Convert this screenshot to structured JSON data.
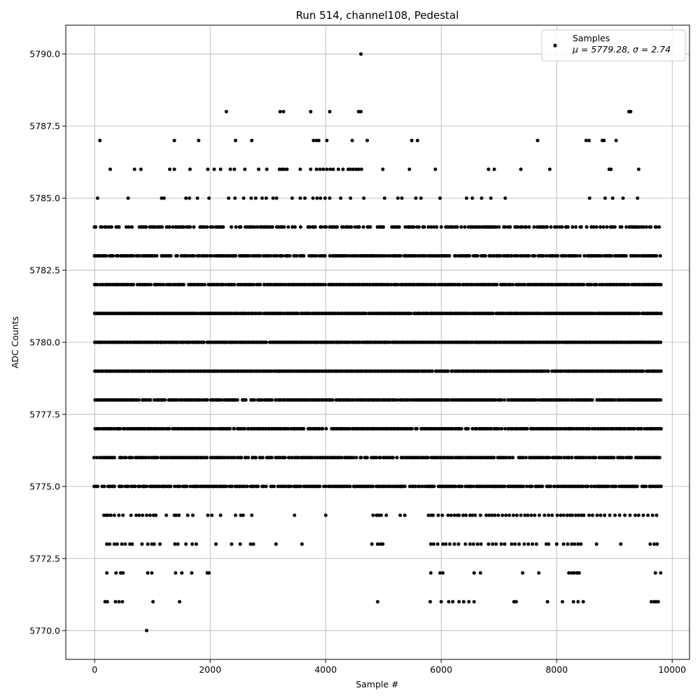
{
  "chart_data": {
    "type": "scatter",
    "title": "Run 514, channel108, Pedestal",
    "xlabel": "Sample #",
    "ylabel": "ADC Counts",
    "xlim": [
      -500,
      10300
    ],
    "ylim": [
      5769.0,
      5791.0
    ],
    "x_ticks": [
      0,
      2000,
      4000,
      6000,
      8000,
      10000
    ],
    "x_tick_labels": [
      "0",
      "2000",
      "4000",
      "6000",
      "8000",
      "10000"
    ],
    "y_ticks": [
      5770.0,
      5772.5,
      5775.0,
      5777.5,
      5780.0,
      5782.5,
      5785.0,
      5787.5,
      5790.0
    ],
    "y_tick_labels": [
      "5770.0",
      "5772.5",
      "5775.0",
      "5777.5",
      "5780.0",
      "5782.5",
      "5785.0",
      "5787.5",
      "5790.0"
    ],
    "grid": true,
    "marker_color": "#000000",
    "legend": {
      "placement": "top-right",
      "series_name": "Samples",
      "stats_text": "μ = 5779.28, σ = 2.74"
    },
    "n_samples": 9800,
    "levels": [
      {
        "y": 5790,
        "x": [
          4610
        ]
      },
      {
        "y": 5788,
        "x": [
          2280,
          3210,
          3270,
          3740,
          4070,
          4570,
          4610,
          9250,
          9280
        ]
      },
      {
        "y": 5787,
        "x": [
          90,
          1380,
          1800,
          2440,
          2720,
          3790,
          3840,
          3880,
          4020,
          4460,
          4720,
          5490,
          5590,
          7670,
          8510,
          8560,
          8790,
          8820,
          9030
        ]
      },
      {
        "y": 5786,
        "x": [
          270,
          690,
          800,
          1300,
          1380,
          1650,
          1960,
          2070,
          2180,
          2350,
          2420,
          2600,
          2840,
          2980,
          3200,
          3240,
          3280,
          3330,
          3560,
          3740,
          3840,
          3900,
          3960,
          4020,
          4080,
          4130,
          4220,
          4300,
          4390,
          4430,
          4480,
          4530,
          4570,
          4620,
          4990,
          5450,
          5900,
          6820,
          6920,
          7380,
          7880,
          8910,
          8940,
          9420
        ]
      },
      {
        "y": 5785,
        "x": [
          50,
          580,
          1160,
          1200,
          1580,
          1640,
          1780,
          1980,
          2320,
          2430,
          2580,
          2710,
          2790,
          2900,
          2970,
          3090,
          3150,
          3420,
          3560,
          3640,
          3780,
          3850,
          3910,
          3990,
          4070,
          4260,
          4430,
          4660,
          5020,
          5250,
          5320,
          5560,
          5650,
          5980,
          6440,
          6540,
          6700,
          6860,
          7110,
          8570,
          8840,
          8970,
          9150,
          9400
        ]
      },
      {
        "y": 5784,
        "range": [
          0,
          9810
        ],
        "density": 0.62,
        "seed": 11
      },
      {
        "y": 5783,
        "range": [
          0,
          9810
        ],
        "density": 0.78,
        "seed": 12
      },
      {
        "y": 5782,
        "range": [
          0,
          9810
        ],
        "density": 0.92,
        "seed": 13
      },
      {
        "y": 5781,
        "range": [
          0,
          9810
        ],
        "density": 0.97,
        "seed": 14
      },
      {
        "y": 5780,
        "range": [
          0,
          9810
        ],
        "density": 0.98,
        "seed": 15
      },
      {
        "y": 5779,
        "range": [
          0,
          9810
        ],
        "density": 0.98,
        "seed": 16
      },
      {
        "y": 5778,
        "range": [
          0,
          9810
        ],
        "density": 0.94,
        "seed": 17
      },
      {
        "y": 5777,
        "range": [
          0,
          9810
        ],
        "density": 0.93,
        "seed": 18
      },
      {
        "y": 5776,
        "range": [
          0,
          9810
        ],
        "density": 0.8,
        "seed": 19
      },
      {
        "y": 5775,
        "range": [
          0,
          9810
        ],
        "density": 0.82,
        "seed": 20
      },
      {
        "y": 5774,
        "x": [
          160,
          200,
          230,
          280,
          340,
          420,
          490,
          630,
          720,
          770,
          830,
          900,
          960,
          1020,
          1060,
          1240,
          1380,
          1410,
          1460,
          1610,
          1700,
          1960,
          2030,
          2180,
          2440,
          2530,
          2570,
          2720,
          3460,
          4000,
          4820,
          4880,
          4920,
          4960,
          5050,
          5290,
          5370,
          5780,
          5830,
          5860,
          5950,
          6020,
          6120,
          6170,
          6230,
          6280,
          6310,
          6380,
          6430,
          6500,
          6540,
          6590,
          6680,
          6780,
          6830,
          6880,
          6930,
          6990,
          7060,
          7120,
          7180,
          7250,
          7310,
          7380,
          7450,
          7500,
          7560,
          7620,
          7700,
          7790,
          7860,
          7920,
          8010,
          8070,
          8120,
          8180,
          8230,
          8270,
          8330,
          8380,
          8430,
          8470,
          8560,
          8620,
          8700,
          8760,
          8830,
          8920,
          9010,
          9090,
          9180,
          9270,
          9360,
          9420,
          9500,
          9580,
          9660,
          9730
        ]
      },
      {
        "y": 5773,
        "x": [
          210,
          260,
          340,
          390,
          470,
          530,
          610,
          650,
          820,
          920,
          990,
          1030,
          1130,
          1390,
          1440,
          1580,
          1690,
          1760,
          2100,
          2370,
          2520,
          2700,
          2750,
          3140,
          3590,
          4800,
          4900,
          4950,
          4990,
          5820,
          5870,
          5940,
          6030,
          6080,
          6150,
          6230,
          6300,
          6420,
          6500,
          6560,
          6630,
          6690,
          6820,
          6890,
          6950,
          7040,
          7100,
          7220,
          7280,
          7350,
          7440,
          7510,
          7580,
          7650,
          7820,
          7860,
          8000,
          8120,
          8190,
          8260,
          8310,
          8370,
          8420,
          8690,
          9110,
          9620,
          9690,
          9740
        ]
      },
      {
        "y": 5772,
        "x": [
          210,
          370,
          450,
          490,
          920,
          990,
          1400,
          1510,
          1680,
          1950,
          1980,
          5820,
          5980,
          6030,
          6570,
          6680,
          7410,
          7690,
          8210,
          8260,
          8300,
          8350,
          8390,
          9710,
          9800
        ]
      },
      {
        "y": 5771,
        "x": [
          180,
          220,
          360,
          420,
          480,
          1010,
          1470,
          4900,
          5810,
          6000,
          6130,
          6200,
          6310,
          6390,
          6480,
          6570,
          7260,
          7300,
          7840,
          8100,
          8290,
          8370,
          8460,
          9640,
          9690,
          9720,
          9760
        ]
      },
      {
        "y": 5770,
        "x": [
          900
        ]
      }
    ]
  }
}
